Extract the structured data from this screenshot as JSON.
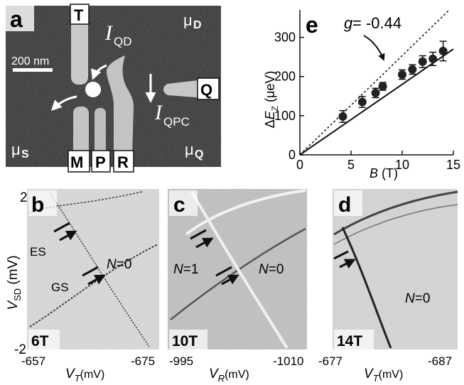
{
  "panel_a": {
    "letter": "a",
    "scale_bar": "200 nm",
    "gate_labels": [
      "T",
      "M",
      "P",
      "R",
      "Q"
    ],
    "current_qd": "QD",
    "current_qpc": "QPC",
    "mu_d": "D",
    "mu_s": "S",
    "mu_q": "Q",
    "mu_symbol": "μ",
    "current_symbol": "I"
  },
  "panel_e": {
    "letter": "e",
    "annotation_g": "g",
    "annotation_value": " = -0.44",
    "xlabel_var": "B",
    "xlabel_unit": " (T)",
    "ylabel_delta": "Δ",
    "ylabel_var": "E",
    "ylabel_sub": "Z",
    "ylabel_unit": " (μeV)"
  },
  "maps": {
    "y_axis_label_var": "V",
    "y_axis_label_sub": "SD",
    "y_axis_label_unit": " (mV)",
    "y_tick_top": "2",
    "y_tick_bottom": "-2",
    "panels": [
      {
        "letter": "b",
        "field": "6T",
        "x_left": "-657",
        "x_right": "-675",
        "x_var": "V",
        "x_sub": "T",
        "x_unit": "(mV)",
        "labels": {
          "es": "ES",
          "gs": "GS",
          "n_var": "N",
          "n_val": "=0"
        }
      },
      {
        "letter": "c",
        "field": "10T",
        "x_left": "-995",
        "x_right": "-1010",
        "x_var": "V",
        "x_sub": "R",
        "x_unit": "(mV)",
        "labels": {
          "n1_var": "N",
          "n1_val": "=1",
          "n0_var": "N",
          "n0_val": "=0"
        }
      },
      {
        "letter": "d",
        "field": "14T",
        "x_left": "-677",
        "x_right": "-687",
        "x_var": "V",
        "x_sub": "T",
        "x_unit": "(mV)",
        "labels": {
          "n0_var": "N",
          "n0_val": "=0"
        }
      }
    ]
  },
  "chart_data": {
    "type": "scatter",
    "title": "",
    "xlabel": "B (T)",
    "ylabel": "ΔEZ (μeV)",
    "xlim": [
      0,
      15
    ],
    "ylim": [
      0,
      370
    ],
    "x_ticks": [
      0,
      5,
      10,
      15
    ],
    "y_ticks": [
      0,
      100,
      200,
      300
    ],
    "series": [
      {
        "x": [
          4.2,
          6.1,
          7.4,
          8.1,
          10.0,
          11.0,
          12.0,
          13.0,
          14.0
        ],
        "y": [
          98,
          135,
          158,
          175,
          205,
          218,
          238,
          245,
          265
        ],
        "yerr": [
          15,
          14,
          12,
          10,
          12,
          12,
          15,
          17,
          25
        ]
      }
    ],
    "fit_line": {
      "x": [
        0,
        15
      ],
      "y": [
        0,
        270
      ]
    },
    "reference_line": {
      "x": [
        0,
        15
      ],
      "y": [
        0,
        380
      ]
    }
  }
}
